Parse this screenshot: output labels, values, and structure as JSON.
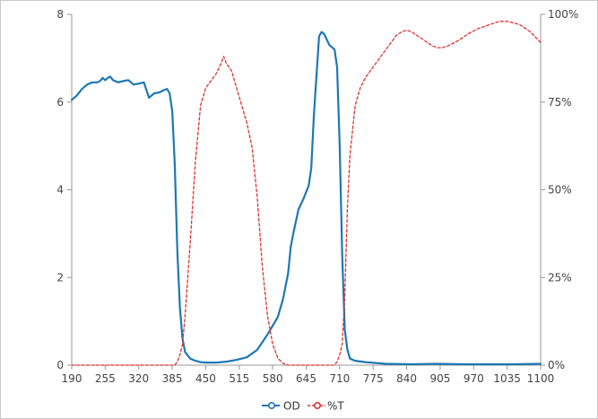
{
  "chart_data": {
    "type": "line",
    "title": "",
    "xlabel": "",
    "ylabel_left": "",
    "ylabel_right": "",
    "xlim": [
      190,
      1100
    ],
    "ylim_left": [
      0,
      8
    ],
    "ylim_right": [
      0,
      100
    ],
    "x_ticks": [
      190,
      255,
      320,
      385,
      450,
      515,
      580,
      645,
      710,
      775,
      840,
      905,
      970,
      1035,
      1100
    ],
    "x_tick_labels": [
      "190",
      "255",
      "320",
      "385",
      "450",
      "515",
      "580",
      "645",
      "710",
      "775",
      "840",
      "905",
      "970",
      "1035",
      "1100"
    ],
    "y_left_ticks": [
      0,
      2,
      4,
      6,
      8
    ],
    "y_left_tick_labels": [
      "0",
      "2",
      "4",
      "6",
      "8"
    ],
    "y_right_ticks": [
      0,
      25,
      50,
      75,
      100
    ],
    "y_right_tick_labels": [
      "0%",
      "25%",
      "50%",
      "75%",
      "100%"
    ],
    "grid": false,
    "legend_position": "bottom-center",
    "series": [
      {
        "name": "OD",
        "axis": "left",
        "color": "#1f77b4",
        "style": "solid",
        "x": [
          190,
          200,
          210,
          220,
          230,
          240,
          245,
          250,
          255,
          260,
          265,
          270,
          280,
          290,
          300,
          310,
          320,
          330,
          340,
          345,
          350,
          360,
          370,
          375,
          380,
          385,
          390,
          395,
          400,
          405,
          410,
          420,
          430,
          440,
          450,
          470,
          490,
          510,
          530,
          550,
          570,
          590,
          600,
          610,
          615,
          620,
          630,
          640,
          650,
          655,
          660,
          665,
          670,
          675,
          680,
          690,
          700,
          705,
          710,
          715,
          720,
          725,
          730,
          740,
          760,
          800,
          850,
          900,
          950,
          1000,
          1050,
          1100
        ],
        "y": [
          6.05,
          6.15,
          6.3,
          6.4,
          6.45,
          6.45,
          6.48,
          6.55,
          6.5,
          6.55,
          6.58,
          6.5,
          6.45,
          6.48,
          6.5,
          6.4,
          6.42,
          6.45,
          6.1,
          6.15,
          6.2,
          6.22,
          6.28,
          6.3,
          6.2,
          5.8,
          4.6,
          2.6,
          1.3,
          0.6,
          0.3,
          0.15,
          0.1,
          0.07,
          0.06,
          0.06,
          0.08,
          0.12,
          0.18,
          0.35,
          0.7,
          1.1,
          1.5,
          2.1,
          2.7,
          3.0,
          3.55,
          3.8,
          4.1,
          4.5,
          5.7,
          6.6,
          7.5,
          7.6,
          7.55,
          7.3,
          7.2,
          6.8,
          5.0,
          2.5,
          0.8,
          0.35,
          0.15,
          0.1,
          0.07,
          0.03,
          0.02,
          0.03,
          0.02,
          0.02,
          0.02,
          0.03
        ]
      },
      {
        "name": "%T",
        "axis": "right",
        "color": "#e03030",
        "style": "dashed",
        "x": [
          190,
          300,
          390,
          395,
          400,
          405,
          410,
          420,
          430,
          440,
          450,
          460,
          470,
          480,
          485,
          490,
          500,
          510,
          520,
          530,
          540,
          550,
          560,
          570,
          580,
          590,
          600,
          610,
          620,
          630,
          700,
          705,
          710,
          715,
          720,
          725,
          730,
          740,
          750,
          760,
          775,
          790,
          800,
          810,
          820,
          830,
          840,
          850,
          860,
          870,
          880,
          890,
          900,
          910,
          920,
          940,
          960,
          980,
          1000,
          1020,
          1035,
          1050,
          1060,
          1070,
          1080,
          1090,
          1100
        ],
        "y": [
          0,
          0,
          0,
          1,
          3,
          6,
          14,
          35,
          58,
          74,
          79,
          81,
          83,
          86,
          88,
          86,
          84,
          79,
          74,
          69,
          62,
          48,
          28,
          14,
          6,
          2,
          0.5,
          0,
          0,
          0,
          0,
          1,
          3,
          6,
          20,
          45,
          60,
          74,
          79,
          82,
          85,
          88,
          90,
          92,
          94,
          95,
          95.5,
          95,
          94,
          93,
          92,
          91,
          90.5,
          90.5,
          91,
          92.5,
          94.5,
          96,
          97,
          98,
          98,
          97.5,
          97,
          96,
          95,
          93.5,
          92
        ]
      }
    ]
  },
  "legend": {
    "items": [
      {
        "label": "OD",
        "color": "#1f77b4",
        "style": "solid"
      },
      {
        "label": "%T",
        "color": "#e03030",
        "style": "dashed"
      }
    ]
  }
}
